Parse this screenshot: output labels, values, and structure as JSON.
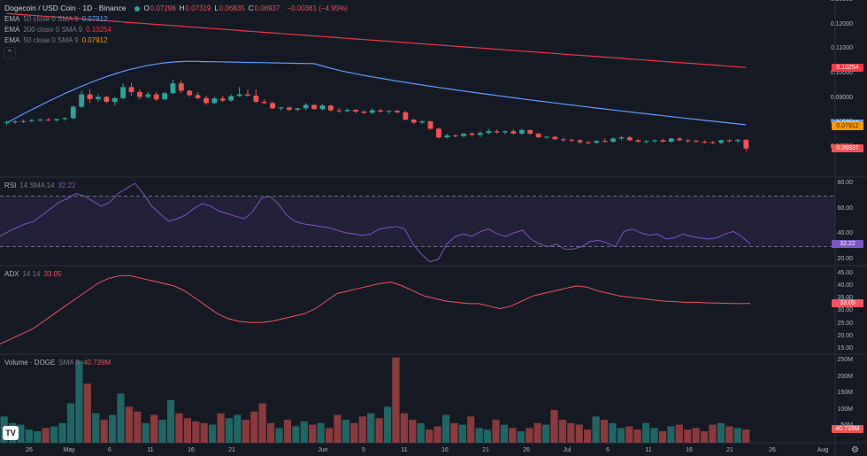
{
  "header": {
    "title": "Dogecoin / USD Coin · 1D · Binance",
    "ohlc": [
      {
        "k": "O",
        "v": "0.07296"
      },
      {
        "k": "H",
        "v": "0.07319"
      },
      {
        "k": "L",
        "v": "0.06835"
      },
      {
        "k": "C",
        "v": "0.06937"
      }
    ],
    "change": "−0.00361 (−4.95%)"
  },
  "legends": {
    "ema50": {
      "name": "EMA",
      "params": "50 close 0 SMA 9",
      "value": "0.07912"
    },
    "ema200": {
      "name": "EMA",
      "params": "200 close 0 SMA 9",
      "value": "0.10254"
    },
    "ema50b": {
      "name": "EMA",
      "params": "50 close 0 SMA 9",
      "value": "0.07912"
    },
    "rsi": {
      "name": "RSI",
      "params": "14 SMA 14",
      "value": "32.22"
    },
    "adx": {
      "name": "ADX",
      "params": "14 14",
      "value": "33.05"
    },
    "volume": {
      "name": "Volume · DOGE",
      "params": "SMA 9",
      "value": "40.739M"
    }
  },
  "colors": {
    "up": "#26a69a",
    "down": "#ef5350",
    "ema50": "#5b9cf6",
    "ema200": "#f23645",
    "ema50b": "#ff9800",
    "rsi": "#7e57c2",
    "adx": "#f7525f",
    "background": "#151924"
  },
  "price_axis": [
    "0.13000",
    "0.12000",
    "0.11000",
    "0.10000",
    "0.09000",
    "0.08000",
    "0.07000"
  ],
  "price_badges": {
    "ema200": "0.10254",
    "ema50": "0.07912",
    "ema50b": "0.07912",
    "last": "0.06937"
  },
  "rsi_axis": [
    "80.00",
    "60.00",
    "40.00",
    "20.00"
  ],
  "rsi_badge": "32.22",
  "adx_axis": [
    "45.00",
    "40.00",
    "35.00",
    "30.00",
    "25.00",
    "20.00",
    "15.00"
  ],
  "adx_badge": "33.05",
  "vol_axis": [
    "250M",
    "200M",
    "150M",
    "100M",
    "50M"
  ],
  "vol_badge": "40.739M",
  "time_axis": [
    "26",
    "May",
    "6",
    "11",
    "16",
    "21",
    "Jun",
    "5",
    "11",
    "16",
    "21",
    "26",
    "Jul",
    "6",
    "11",
    "16",
    "21",
    "26",
    "Aug"
  ],
  "chart_data": {
    "type": "candlestick",
    "interval": "1D",
    "x_range": [
      "2023-04-22",
      "2023-07-24"
    ],
    "ylim": [
      0.065,
      0.13
    ],
    "candles": [
      [
        0.08,
        0.0808,
        0.079,
        0.0802
      ],
      [
        0.0802,
        0.081,
        0.0795,
        0.0805
      ],
      [
        0.0805,
        0.0812,
        0.0798,
        0.0806
      ],
      [
        0.0806,
        0.0815,
        0.08,
        0.081
      ],
      [
        0.081,
        0.0818,
        0.0805,
        0.0812
      ],
      [
        0.0812,
        0.082,
        0.0806,
        0.0809
      ],
      [
        0.0809,
        0.0816,
        0.0803,
        0.0814
      ],
      [
        0.0814,
        0.0822,
        0.0808,
        0.0818
      ],
      [
        0.0818,
        0.087,
        0.0815,
        0.0865
      ],
      [
        0.0865,
        0.093,
        0.086,
        0.0915
      ],
      [
        0.0915,
        0.0935,
        0.088,
        0.0896
      ],
      [
        0.0896,
        0.0915,
        0.0885,
        0.0905
      ],
      [
        0.0905,
        0.091,
        0.088,
        0.0885
      ],
      [
        0.0885,
        0.0905,
        0.087,
        0.09
      ],
      [
        0.09,
        0.096,
        0.0895,
        0.0945
      ],
      [
        0.0945,
        0.0962,
        0.091,
        0.0925
      ],
      [
        0.0925,
        0.0935,
        0.0895,
        0.0905
      ],
      [
        0.0905,
        0.0925,
        0.0898,
        0.0915
      ],
      [
        0.0915,
        0.0925,
        0.0888,
        0.0895
      ],
      [
        0.0895,
        0.0925,
        0.089,
        0.092
      ],
      [
        0.092,
        0.0975,
        0.0915,
        0.096
      ],
      [
        0.096,
        0.097,
        0.092,
        0.093
      ],
      [
        0.093,
        0.0935,
        0.0905,
        0.0912
      ],
      [
        0.0912,
        0.0925,
        0.0895,
        0.09
      ],
      [
        0.09,
        0.0908,
        0.0872,
        0.088
      ],
      [
        0.088,
        0.0905,
        0.0875,
        0.0898
      ],
      [
        0.0898,
        0.091,
        0.0885,
        0.089
      ],
      [
        0.089,
        0.0915,
        0.0885,
        0.0908
      ],
      [
        0.0908,
        0.0945,
        0.0905,
        0.0915
      ],
      [
        0.0915,
        0.0935,
        0.0905,
        0.091
      ],
      [
        0.091,
        0.0935,
        0.088,
        0.0885
      ],
      [
        0.0885,
        0.0895,
        0.0875,
        0.088
      ],
      [
        0.088,
        0.0885,
        0.0855,
        0.0858
      ],
      [
        0.0858,
        0.0865,
        0.085,
        0.0862
      ],
      [
        0.0862,
        0.0865,
        0.0847,
        0.0852
      ],
      [
        0.0852,
        0.086,
        0.0845,
        0.0858
      ],
      [
        0.0858,
        0.088,
        0.085,
        0.0872
      ],
      [
        0.0872,
        0.0875,
        0.0853,
        0.0855
      ],
      [
        0.0855,
        0.0875,
        0.085,
        0.087
      ],
      [
        0.087,
        0.0872,
        0.0845,
        0.085
      ],
      [
        0.085,
        0.086,
        0.084,
        0.0847
      ],
      [
        0.0847,
        0.0858,
        0.0842,
        0.0852
      ],
      [
        0.0852,
        0.0855,
        0.0838,
        0.0845
      ],
      [
        0.0845,
        0.085,
        0.0835,
        0.084
      ],
      [
        0.084,
        0.0858,
        0.0835,
        0.085
      ],
      [
        0.085,
        0.0855,
        0.084,
        0.0845
      ],
      [
        0.0845,
        0.085,
        0.0835,
        0.0848
      ],
      [
        0.0848,
        0.0852,
        0.0838,
        0.0842
      ],
      [
        0.0842,
        0.0848,
        0.0808,
        0.0812
      ],
      [
        0.0812,
        0.0815,
        0.0795,
        0.08
      ],
      [
        0.08,
        0.081,
        0.0795,
        0.0805
      ],
      [
        0.0805,
        0.0808,
        0.077,
        0.0775
      ],
      [
        0.0775,
        0.0778,
        0.0735,
        0.074
      ],
      [
        0.074,
        0.0755,
        0.0735,
        0.0748
      ],
      [
        0.0748,
        0.0752,
        0.074,
        0.0745
      ],
      [
        0.0745,
        0.0758,
        0.074,
        0.0755
      ],
      [
        0.0755,
        0.0762,
        0.0745,
        0.075
      ],
      [
        0.075,
        0.0765,
        0.074,
        0.0758
      ],
      [
        0.0758,
        0.0775,
        0.0752,
        0.0765
      ],
      [
        0.0765,
        0.0772,
        0.0755,
        0.076
      ],
      [
        0.076,
        0.0768,
        0.0752,
        0.0765
      ],
      [
        0.0765,
        0.0772,
        0.0752,
        0.0755
      ],
      [
        0.0755,
        0.0775,
        0.075,
        0.077
      ],
      [
        0.077,
        0.0772,
        0.075,
        0.0755
      ],
      [
        0.0755,
        0.0758,
        0.0738,
        0.074
      ],
      [
        0.074,
        0.0745,
        0.0735,
        0.0742
      ],
      [
        0.0742,
        0.0745,
        0.0728,
        0.0732
      ],
      [
        0.0732,
        0.0738,
        0.0722,
        0.073
      ],
      [
        0.073,
        0.0735,
        0.072,
        0.0728
      ],
      [
        0.0728,
        0.0732,
        0.0715,
        0.072
      ],
      [
        0.072,
        0.0725,
        0.0712,
        0.0718
      ],
      [
        0.0718,
        0.0728,
        0.0712,
        0.0725
      ],
      [
        0.0725,
        0.0735,
        0.0718,
        0.0722
      ],
      [
        0.0722,
        0.074,
        0.0718,
        0.0735
      ],
      [
        0.0735,
        0.0745,
        0.0728,
        0.074
      ],
      [
        0.074,
        0.0745,
        0.0725,
        0.0728
      ],
      [
        0.0728,
        0.0735,
        0.0718,
        0.0722
      ],
      [
        0.0722,
        0.0728,
        0.0715,
        0.0725
      ],
      [
        0.0725,
        0.0732,
        0.0718,
        0.0728
      ],
      [
        0.0728,
        0.0735,
        0.072,
        0.0722
      ],
      [
        0.0722,
        0.0738,
        0.0718,
        0.0735
      ],
      [
        0.0735,
        0.074,
        0.0725,
        0.0728
      ],
      [
        0.0728,
        0.0732,
        0.0718,
        0.0725
      ],
      [
        0.0725,
        0.073,
        0.0718,
        0.0722
      ],
      [
        0.0722,
        0.0728,
        0.0715,
        0.072
      ],
      [
        0.072,
        0.0725,
        0.0712,
        0.0718
      ],
      [
        0.0718,
        0.073,
        0.0712,
        0.0728
      ],
      [
        0.0728,
        0.0732,
        0.0718,
        0.0725
      ],
      [
        0.0725,
        0.0732,
        0.0718,
        0.073
      ],
      [
        0.073,
        0.0732,
        0.0683,
        0.0694
      ]
    ],
    "ema50": {
      "from": 0.08,
      "to": 0.0791,
      "peak": 0.105
    },
    "ema200": {
      "from": 0.1245,
      "to": 0.1025
    },
    "rsi": [
      38,
      42,
      45,
      48,
      50,
      55,
      60,
      65,
      68,
      72,
      70,
      66,
      62,
      65,
      72,
      76,
      80,
      72,
      62,
      56,
      50,
      52,
      55,
      60,
      64,
      62,
      58,
      56,
      54,
      52,
      58,
      68,
      70,
      64,
      55,
      50,
      48,
      47,
      46,
      45,
      43,
      41,
      40,
      39,
      40,
      44,
      45,
      46,
      44,
      32,
      24,
      18,
      20,
      32,
      38,
      40,
      38,
      42,
      44,
      40,
      38,
      41,
      43,
      36,
      32,
      30,
      32,
      28,
      28,
      30,
      34,
      35,
      33,
      30,
      42,
      44,
      41,
      39,
      40,
      36,
      37,
      40,
      38,
      37,
      36,
      37,
      40,
      42,
      38,
      32
    ],
    "adx": [
      17,
      19,
      21,
      23,
      26,
      29,
      32,
      35,
      38,
      41,
      43,
      44,
      44,
      43,
      42,
      41,
      40,
      38,
      35,
      32,
      29,
      27,
      26,
      25.5,
      25.5,
      26,
      27,
      28,
      29,
      31,
      34,
      37,
      38,
      39,
      40,
      41,
      41.5,
      40,
      38,
      36,
      35,
      34,
      33.5,
      33,
      33,
      32,
      31,
      32,
      34,
      36,
      37,
      38,
      39,
      40,
      39.5,
      38,
      37,
      36,
      35.5,
      35,
      34.5,
      34,
      33.8,
      33.5,
      33.5,
      33.3,
      33.2,
      33.1,
      33,
      33.05
    ],
    "volume": [
      80,
      60,
      55,
      40,
      35,
      45,
      50,
      60,
      120,
      250,
      180,
      90,
      70,
      85,
      150,
      110,
      95,
      60,
      85,
      70,
      130,
      90,
      75,
      65,
      60,
      55,
      90,
      75,
      85,
      70,
      95,
      120,
      60,
      45,
      70,
      50,
      65,
      55,
      60,
      45,
      85,
      70,
      60,
      80,
      90,
      75,
      110,
      260,
      90,
      70,
      60,
      40,
      50,
      85,
      60,
      55,
      80,
      45,
      40,
      70,
      55,
      45,
      35,
      45,
      60,
      55,
      100,
      70,
      60,
      55,
      40,
      80,
      70,
      60,
      45,
      50,
      40,
      60,
      45,
      35,
      50,
      55,
      40,
      45,
      35,
      55,
      60,
      50,
      45,
      40
    ]
  }
}
